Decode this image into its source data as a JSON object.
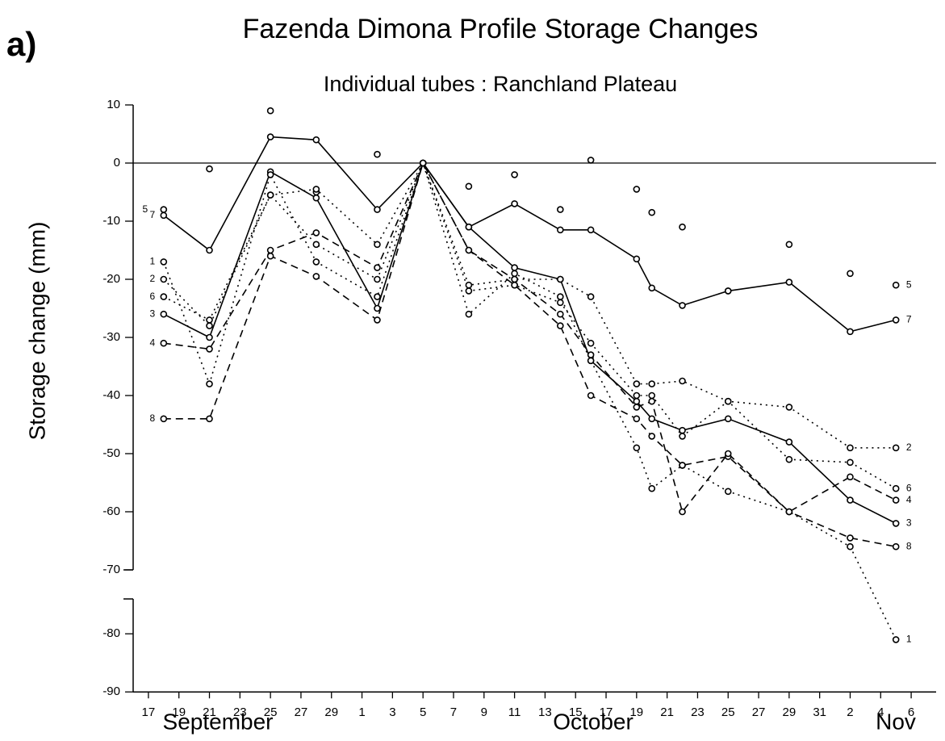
{
  "chart_data": {
    "type": "line",
    "panel_label": "a)",
    "title": "Fazenda Dimona Profile Storage Changes",
    "subtitle": "Individual tubes : Ranchland Plateau",
    "ylabel": "Storage change (mm)",
    "months": [
      "September",
      "October",
      "Nov"
    ],
    "x": [
      18,
      21,
      25,
      28,
      32,
      35,
      38,
      41,
      44,
      46,
      49,
      50,
      52,
      55,
      59,
      63,
      66
    ],
    "xlim": [
      16,
      68
    ],
    "xticks": [
      17,
      19,
      21,
      23,
      25,
      27,
      29,
      {
        "value": 31,
        "label": "1"
      },
      {
        "value": 33,
        "label": "3"
      },
      {
        "value": 35,
        "label": "5"
      },
      {
        "value": 37,
        "label": "7"
      },
      {
        "value": 39,
        "label": "9"
      },
      {
        "value": 41,
        "label": "11"
      },
      {
        "value": 43,
        "label": "13"
      },
      {
        "value": 45,
        "label": "15"
      },
      {
        "value": 47,
        "label": "17"
      },
      {
        "value": 49,
        "label": "19"
      },
      {
        "value": 51,
        "label": "21"
      },
      {
        "value": 53,
        "label": "23"
      },
      {
        "value": 55,
        "label": "25"
      },
      {
        "value": 57,
        "label": "27"
      },
      {
        "value": 59,
        "label": "29"
      },
      {
        "value": 61,
        "label": "31"
      },
      {
        "value": 63,
        "label": "2"
      },
      {
        "value": 65,
        "label": "4"
      },
      {
        "value": 67,
        "label": "6"
      }
    ],
    "ylim": [
      -90,
      10
    ],
    "axis_break": [
      -74,
      -70
    ],
    "yticks": [
      10,
      0,
      -10,
      -20,
      -30,
      -40,
      -50,
      -60,
      -70,
      -80,
      -90
    ],
    "zero_line": true,
    "series": [
      {
        "name": "7",
        "color": "#000000",
        "style": "solid",
        "values": [
          -9,
          -15,
          4.5,
          4,
          -8,
          0,
          -11,
          -7,
          -11.5,
          -11.5,
          -16.5,
          -21.5,
          -24.5,
          -22,
          -20.5,
          -29,
          -27
        ]
      },
      {
        "name": "5",
        "color": "#000000",
        "style": "none",
        "values": [
          -8,
          -1,
          9,
          -5,
          1.5,
          0,
          -4,
          -2,
          -8,
          0.5,
          -4.5,
          -8.5,
          -11,
          -22,
          -14,
          -19,
          -21
        ]
      },
      {
        "name": "3",
        "color": "#000000",
        "style": "solid",
        "values": [
          -26,
          -30,
          -1.5,
          -6,
          -25,
          0,
          -11,
          -18,
          -20,
          -34,
          -41,
          -44,
          -46,
          -44,
          -48,
          -58,
          -62
        ]
      },
      {
        "name": "8",
        "color": "#000000",
        "style": "dashed",
        "values": [
          -44,
          -44,
          -16,
          -19.5,
          -27,
          0,
          -15,
          -21,
          -28,
          -40,
          -44,
          -47,
          -52,
          -50.5,
          -60,
          -64.5,
          -66
        ]
      },
      {
        "name": "4",
        "color": "#000000",
        "style": "dashed",
        "values": [
          -31,
          -32,
          -15,
          -12,
          -18,
          0,
          -15,
          -20,
          -26,
          -33,
          -42,
          -41,
          -60,
          -50,
          -60,
          -54,
          -58
        ]
      },
      {
        "name": "2",
        "color": "#000000",
        "style": "dotted",
        "values": [
          -20,
          -28,
          -5.5,
          -4.5,
          -14,
          0,
          -21,
          -20,
          -20,
          -23,
          -38,
          -38,
          -37.5,
          -41,
          -42,
          -49,
          -49
        ]
      },
      {
        "name": "6",
        "color": "#000000",
        "style": "dotted",
        "values": [
          -23,
          -27,
          -5.5,
          -14,
          -20,
          0,
          -22,
          -21,
          -24,
          -31,
          -40,
          -40,
          -47,
          -41,
          -51,
          -51.5,
          -56
        ]
      },
      {
        "name": "1",
        "color": "#000000",
        "style": "dotted",
        "values": [
          -17,
          -38,
          -2,
          -17,
          -23,
          0,
          -26,
          -19,
          -23,
          -34,
          -49,
          -56,
          -52,
          -56.5,
          -60,
          -66,
          -81
        ]
      }
    ]
  }
}
